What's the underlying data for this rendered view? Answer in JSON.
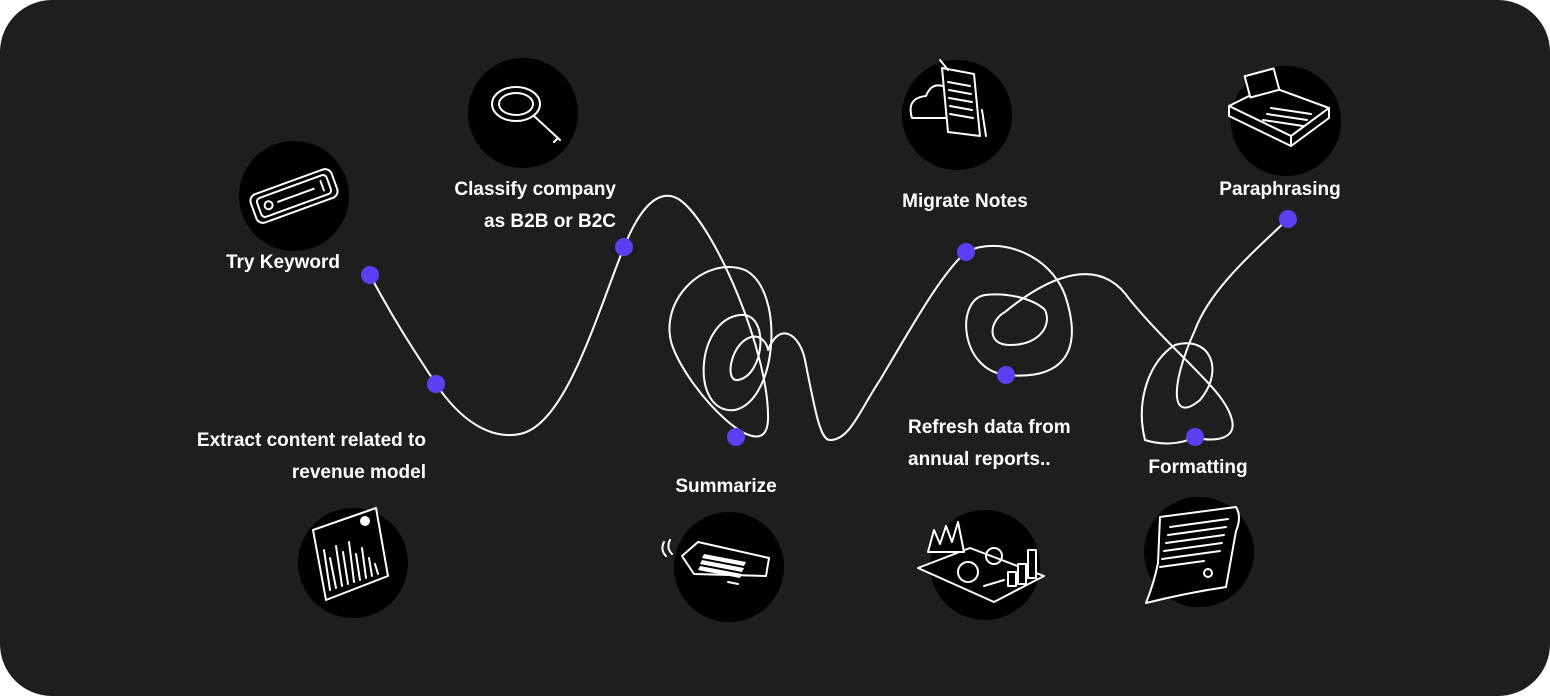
{
  "steps": [
    {
      "id": "try-keyword",
      "lines": [
        "Try Keyword"
      ],
      "icon": "phone-keyword-icon"
    },
    {
      "id": "extract-content",
      "lines": [
        "Extract content related to",
        "revenue model"
      ],
      "icon": "bar-chart-tablet-icon"
    },
    {
      "id": "classify-company",
      "lines": [
        "Classify company",
        "as B2B or B2C"
      ],
      "icon": "magnifying-glass-icon"
    },
    {
      "id": "summarize",
      "lines": [
        "Summarize"
      ],
      "icon": "document-tag-icon"
    },
    {
      "id": "migrate-notes",
      "lines": [
        "Migrate Notes"
      ],
      "icon": "cloud-notes-icon"
    },
    {
      "id": "refresh-data",
      "lines": [
        "Refresh data from",
        "annual reports.."
      ],
      "icon": "analytics-dashboard-icon"
    },
    {
      "id": "formatting",
      "lines": [
        "Formatting"
      ],
      "icon": "paper-document-icon"
    },
    {
      "id": "paraphrasing",
      "lines": [
        "Paraphrasing"
      ],
      "icon": "typewriter-icon"
    }
  ],
  "colors": {
    "background": "#1f1e1e",
    "text": "#ffffff",
    "path": "#ffffff",
    "marker": "#5b3ff0",
    "icon_circle": "#000000"
  }
}
